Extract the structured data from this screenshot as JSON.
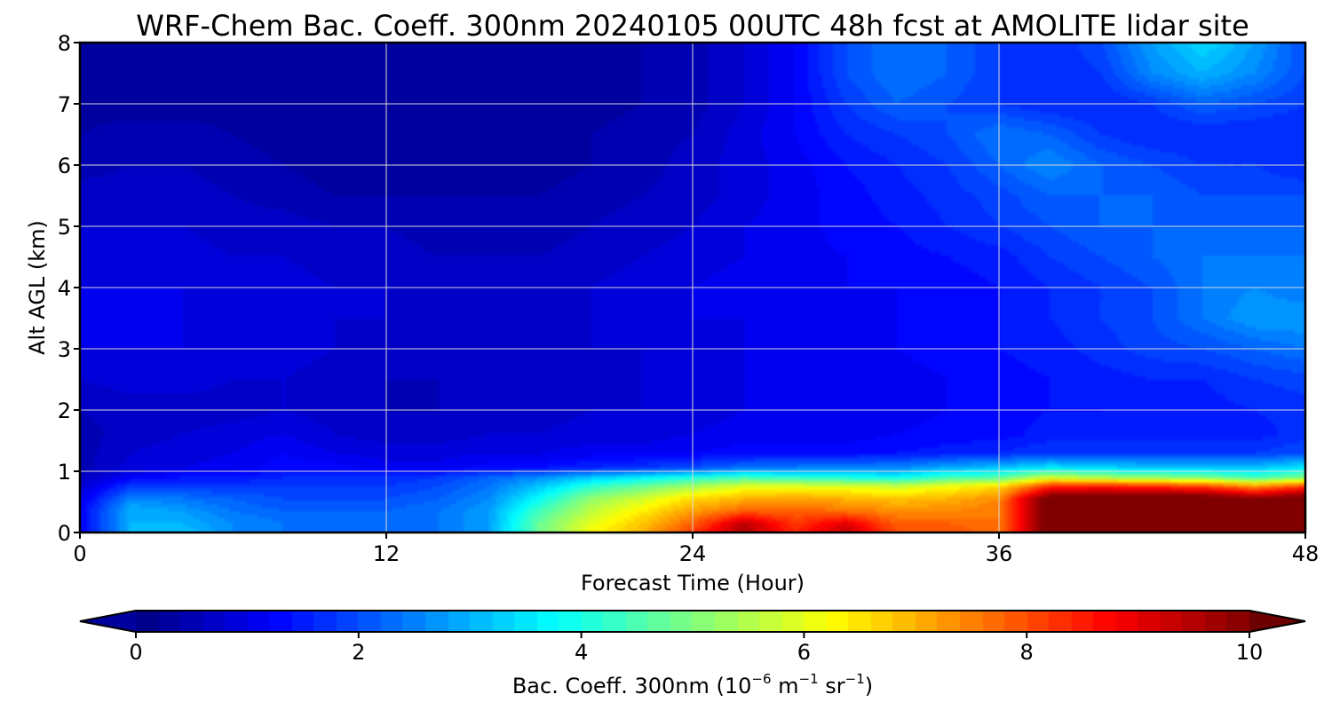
{
  "chart_data": {
    "type": "heatmap",
    "title": "WRF-Chem Bac. Coeff. 300nm  20240105 00UTC 48h fcst at AMOLITE lidar site",
    "xlabel": "Forecast Time (Hour)",
    "ylabel": "Alt AGL (km)",
    "xlim": [
      0,
      48
    ],
    "ylim": [
      0,
      8
    ],
    "xticks": [
      "0",
      "12",
      "24",
      "36",
      "48"
    ],
    "yticks": [
      "0",
      "1",
      "2",
      "3",
      "4",
      "5",
      "6",
      "7",
      "8"
    ],
    "grid": true,
    "colormap": "jet",
    "colorbar": {
      "range": [
        0,
        10
      ],
      "extend": "both",
      "ticks": [
        "0",
        "2",
        "4",
        "6",
        "8",
        "10"
      ],
      "label_main": "Bac. Coeff. 300nm  (10",
      "label_exp1": "−6",
      "label_unit1": " m",
      "label_exp2": "−1",
      "label_unit2": " sr",
      "label_exp3": "−1",
      "label_close": ")"
    },
    "x": [
      0,
      2,
      4,
      6,
      8,
      10,
      12,
      14,
      16,
      18,
      20,
      22,
      24,
      26,
      28,
      30,
      32,
      34,
      36,
      38,
      40,
      42,
      44,
      46,
      48
    ],
    "y": [
      0,
      0.15,
      0.35,
      0.55,
      0.75,
      0.9,
      1.05,
      1.3,
      1.6,
      2,
      2.5,
      3,
      3.5,
      4,
      4.5,
      5,
      5.5,
      6,
      6.5,
      7,
      7.5,
      8
    ],
    "z": [
      [
        1.2,
        3.0,
        3.2,
        2.6,
        2.4,
        2.2,
        2.2,
        2.4,
        2.8,
        4.8,
        6.2,
        7.0,
        8.2,
        9.6,
        8.4,
        9.4,
        8.0,
        8.0,
        7.6,
        10.5,
        10.5,
        10.5,
        10.5,
        10.5,
        10.5
      ],
      [
        1.2,
        3.0,
        3.0,
        2.6,
        2.4,
        2.2,
        2.2,
        2.4,
        2.8,
        4.8,
        6.0,
        6.8,
        7.8,
        9.4,
        8.2,
        9.0,
        7.8,
        7.8,
        7.6,
        10.5,
        10.5,
        10.5,
        10.5,
        10.5,
        10.5
      ],
      [
        1.2,
        3.0,
        2.8,
        2.4,
        2.2,
        2.2,
        2.2,
        2.4,
        2.8,
        4.4,
        5.6,
        6.4,
        7.2,
        7.8,
        7.8,
        7.6,
        7.4,
        7.4,
        7.6,
        10.5,
        10.5,
        10.5,
        10.5,
        10.5,
        10.5
      ],
      [
        1.0,
        2.6,
        2.4,
        2.2,
        2.0,
        2.0,
        2.0,
        2.2,
        2.6,
        3.8,
        5.2,
        5.8,
        6.6,
        7.0,
        7.2,
        7.0,
        6.8,
        7.0,
        7.4,
        10.5,
        10.5,
        10.5,
        10.5,
        10.0,
        10.5
      ],
      [
        0.8,
        1.8,
        1.8,
        1.8,
        1.8,
        1.8,
        1.8,
        2.0,
        2.4,
        3.2,
        4.2,
        4.8,
        5.4,
        6.0,
        6.0,
        6.0,
        5.8,
        6.2,
        6.6,
        8.4,
        8.6,
        8.4,
        8.2,
        7.4,
        8.2
      ],
      [
        0.6,
        1.2,
        1.4,
        1.4,
        1.6,
        1.6,
        1.6,
        1.8,
        2.2,
        2.6,
        3.2,
        3.6,
        4.0,
        4.4,
        4.2,
        4.0,
        3.8,
        4.4,
        4.6,
        5.8,
        5.4,
        5.2,
        5.0,
        4.4,
        5.0
      ],
      [
        0.5,
        0.9,
        1.0,
        1.1,
        1.3,
        1.3,
        1.1,
        1.1,
        1.3,
        1.4,
        1.6,
        1.8,
        2.0,
        2.4,
        2.5,
        2.6,
        2.6,
        3.0,
        3.2,
        3.6,
        3.4,
        3.2,
        3.2,
        3.2,
        3.6
      ],
      [
        0.5,
        0.8,
        0.9,
        1.0,
        1.2,
        1.0,
        0.9,
        0.9,
        1.0,
        1.0,
        1.1,
        1.1,
        1.2,
        1.3,
        1.3,
        1.3,
        1.4,
        1.5,
        1.6,
        1.8,
        1.8,
        1.8,
        1.8,
        1.8,
        2.0
      ],
      [
        0.5,
        0.7,
        0.8,
        0.9,
        1.0,
        0.8,
        0.7,
        0.7,
        0.8,
        0.8,
        0.9,
        0.9,
        1.0,
        1.1,
        1.1,
        1.1,
        1.2,
        1.3,
        1.3,
        1.5,
        1.5,
        1.5,
        1.5,
        1.5,
        1.7
      ],
      [
        0.6,
        0.7,
        0.7,
        0.7,
        0.8,
        0.7,
        0.6,
        0.6,
        0.7,
        0.7,
        0.8,
        0.8,
        0.9,
        1.0,
        1.0,
        1.0,
        1.1,
        1.2,
        1.3,
        1.4,
        1.4,
        1.5,
        1.5,
        1.6,
        1.7
      ],
      [
        0.8,
        0.9,
        0.9,
        0.8,
        0.8,
        0.7,
        0.6,
        0.6,
        0.7,
        0.7,
        0.7,
        0.8,
        0.9,
        1.0,
        1.0,
        1.1,
        1.1,
        1.2,
        1.3,
        1.4,
        1.5,
        1.6,
        1.6,
        1.8,
        1.9
      ],
      [
        1.0,
        1.0,
        1.0,
        0.9,
        0.9,
        0.8,
        0.7,
        0.7,
        0.7,
        0.7,
        0.8,
        0.8,
        0.9,
        1.0,
        1.1,
        1.1,
        1.2,
        1.3,
        1.4,
        1.5,
        1.7,
        1.9,
        2.0,
        2.2,
        2.4
      ],
      [
        1.1,
        1.1,
        1.0,
        1.0,
        0.9,
        0.8,
        0.8,
        0.7,
        0.7,
        0.7,
        0.8,
        0.9,
        1.0,
        1.0,
        1.1,
        1.1,
        1.2,
        1.3,
        1.4,
        1.6,
        1.8,
        2.0,
        2.4,
        2.8,
        2.8
      ],
      [
        1.0,
        1.0,
        1.0,
        0.9,
        0.9,
        0.8,
        0.8,
        0.7,
        0.7,
        0.7,
        0.8,
        0.9,
        1.0,
        1.1,
        1.1,
        1.2,
        1.2,
        1.3,
        1.4,
        1.6,
        1.8,
        2.0,
        2.4,
        2.6,
        2.4
      ],
      [
        0.9,
        0.9,
        0.9,
        0.8,
        0.8,
        0.7,
        0.7,
        0.6,
        0.6,
        0.6,
        0.7,
        0.8,
        0.9,
        1.0,
        1.1,
        1.2,
        1.3,
        1.4,
        1.5,
        1.8,
        2.0,
        2.2,
        2.4,
        2.4,
        2.4
      ],
      [
        0.8,
        0.8,
        0.8,
        0.7,
        0.7,
        0.6,
        0.6,
        0.5,
        0.5,
        0.5,
        0.6,
        0.7,
        0.8,
        1.0,
        1.1,
        1.3,
        1.4,
        1.6,
        1.8,
        2.0,
        2.2,
        2.2,
        2.2,
        2.2,
        2.2
      ],
      [
        0.7,
        0.7,
        0.7,
        0.6,
        0.5,
        0.4,
        0.4,
        0.4,
        0.4,
        0.4,
        0.5,
        0.6,
        0.7,
        0.9,
        1.1,
        1.3,
        1.5,
        1.7,
        1.9,
        2.2,
        2.2,
        2.2,
        2.0,
        2.0,
        2.0
      ],
      [
        0.5,
        0.6,
        0.6,
        0.5,
        0.4,
        0.3,
        0.3,
        0.3,
        0.3,
        0.3,
        0.4,
        0.5,
        0.7,
        0.9,
        1.1,
        1.4,
        1.6,
        1.8,
        2.2,
        2.6,
        2.2,
        2.0,
        1.8,
        1.8,
        1.6
      ],
      [
        0.4,
        0.5,
        0.5,
        0.4,
        0.3,
        0.2,
        0.2,
        0.2,
        0.2,
        0.3,
        0.4,
        0.5,
        0.6,
        0.9,
        1.2,
        1.6,
        1.8,
        2.0,
        2.4,
        2.2,
        1.8,
        1.6,
        1.6,
        1.6,
        1.6
      ],
      [
        0.3,
        0.3,
        0.3,
        0.3,
        0.2,
        0.2,
        0.2,
        0.2,
        0.2,
        0.3,
        0.3,
        0.4,
        0.5,
        0.8,
        1.2,
        1.8,
        2.2,
        2.0,
        1.8,
        1.6,
        1.6,
        1.8,
        2.2,
        2.0,
        1.8
      ],
      [
        0.2,
        0.2,
        0.3,
        0.3,
        0.2,
        0.2,
        0.2,
        0.2,
        0.2,
        0.2,
        0.3,
        0.4,
        0.5,
        0.8,
        1.2,
        2.0,
        2.4,
        2.2,
        1.8,
        1.6,
        1.8,
        2.6,
        3.0,
        2.6,
        2.0
      ],
      [
        0.2,
        0.2,
        0.3,
        0.3,
        0.2,
        0.2,
        0.2,
        0.2,
        0.2,
        0.2,
        0.3,
        0.4,
        0.5,
        0.8,
        1.2,
        2.0,
        2.4,
        2.2,
        1.8,
        1.6,
        2.0,
        2.8,
        3.4,
        2.8,
        2.0
      ]
    ]
  }
}
